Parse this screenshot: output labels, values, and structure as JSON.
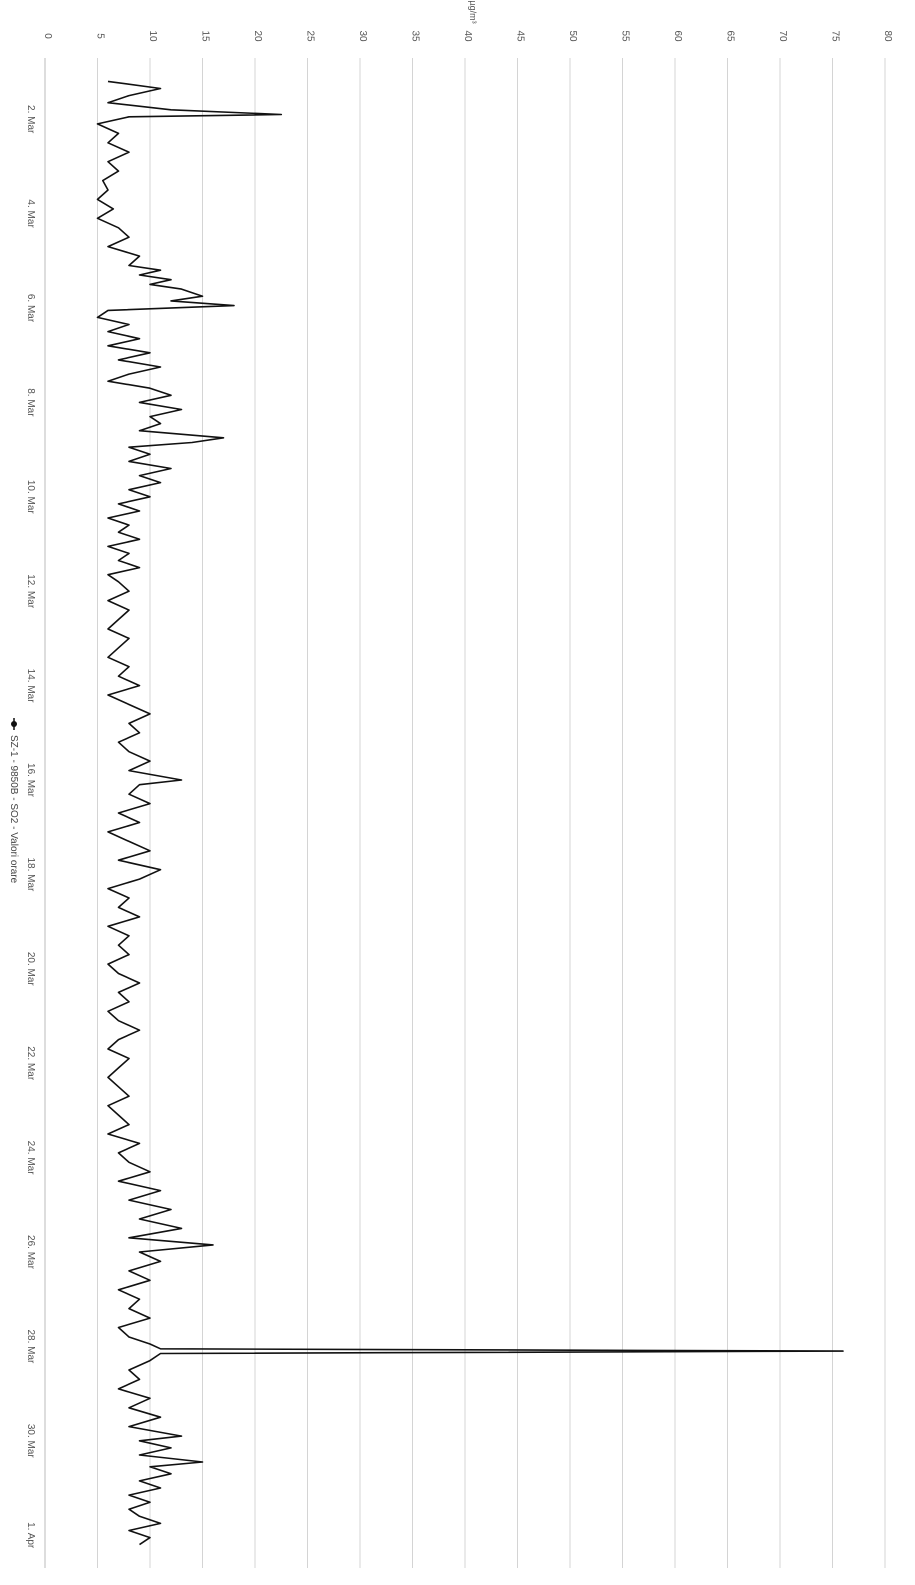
{
  "chart_data": {
    "type": "line",
    "orientation": "rotated-90-clockwise",
    "title": "",
    "ylabel": "µg/m³",
    "xlabel": "",
    "ylim": [
      0,
      80
    ],
    "y_ticks": [
      0,
      5,
      10,
      15,
      20,
      25,
      30,
      35,
      40,
      45,
      50,
      55,
      60,
      65,
      70,
      75,
      80
    ],
    "y_tick_labels": [
      "0",
      "5",
      "10",
      "15",
      "20",
      "25",
      "30",
      "35",
      "40",
      "45",
      "50",
      "55",
      "60",
      "65",
      "70",
      "75",
      "80"
    ],
    "x_tick_labels": [
      "2. Mar",
      "4. Mar",
      "6. Mar",
      "8. Mar",
      "10. Mar",
      "12. Mar",
      "14. Mar",
      "16. Mar",
      "18. Mar",
      "20. Mar",
      "22. Mar",
      "24. Mar",
      "26. Mar",
      "28. Mar",
      "30. Mar",
      "1. Apr"
    ],
    "x_tick_days": [
      2,
      4,
      6,
      8,
      10,
      12,
      14,
      16,
      18,
      20,
      22,
      24,
      26,
      28,
      30,
      32
    ],
    "xlim_days": [
      1,
      32.3
    ],
    "grid": true,
    "legend": "bottom",
    "series": [
      {
        "name": "SZ-1 - 9850B - SO2 - Valori orare",
        "color": "#111111",
        "points": [
          [
            1.2,
            6
          ],
          [
            1.35,
            11
          ],
          [
            1.5,
            8
          ],
          [
            1.65,
            6
          ],
          [
            1.8,
            12
          ],
          [
            1.9,
            22.5
          ],
          [
            1.95,
            8
          ],
          [
            2.1,
            5
          ],
          [
            2.3,
            7
          ],
          [
            2.5,
            6
          ],
          [
            2.7,
            8
          ],
          [
            2.9,
            6
          ],
          [
            3.1,
            7
          ],
          [
            3.3,
            5.5
          ],
          [
            3.5,
            6
          ],
          [
            3.7,
            5
          ],
          [
            3.9,
            6.5
          ],
          [
            4.1,
            5
          ],
          [
            4.3,
            7
          ],
          [
            4.5,
            8
          ],
          [
            4.7,
            6
          ],
          [
            4.9,
            9
          ],
          [
            5.1,
            8
          ],
          [
            5.2,
            11
          ],
          [
            5.3,
            9
          ],
          [
            5.4,
            12
          ],
          [
            5.5,
            10
          ],
          [
            5.6,
            13
          ],
          [
            5.75,
            15
          ],
          [
            5.85,
            12
          ],
          [
            5.95,
            18
          ],
          [
            6.05,
            6
          ],
          [
            6.2,
            5
          ],
          [
            6.35,
            8
          ],
          [
            6.5,
            6
          ],
          [
            6.65,
            9
          ],
          [
            6.8,
            6
          ],
          [
            6.95,
            10
          ],
          [
            7.1,
            7
          ],
          [
            7.25,
            11
          ],
          [
            7.4,
            8
          ],
          [
            7.55,
            6
          ],
          [
            7.7,
            10
          ],
          [
            7.85,
            12
          ],
          [
            8.0,
            9
          ],
          [
            8.15,
            13
          ],
          [
            8.3,
            10
          ],
          [
            8.45,
            11
          ],
          [
            8.6,
            9
          ],
          [
            8.75,
            17
          ],
          [
            8.85,
            14
          ],
          [
            8.95,
            8
          ],
          [
            9.1,
            10
          ],
          [
            9.25,
            8
          ],
          [
            9.4,
            12
          ],
          [
            9.55,
            9
          ],
          [
            9.7,
            11
          ],
          [
            9.85,
            8
          ],
          [
            10.0,
            10
          ],
          [
            10.15,
            7
          ],
          [
            10.3,
            9
          ],
          [
            10.45,
            6
          ],
          [
            10.6,
            8
          ],
          [
            10.75,
            7
          ],
          [
            10.9,
            9
          ],
          [
            11.05,
            6
          ],
          [
            11.2,
            8
          ],
          [
            11.35,
            7
          ],
          [
            11.5,
            9
          ],
          [
            11.65,
            6
          ],
          [
            11.8,
            7
          ],
          [
            12.0,
            8
          ],
          [
            12.2,
            6
          ],
          [
            12.4,
            8
          ],
          [
            12.6,
            7
          ],
          [
            12.8,
            6
          ],
          [
            13.0,
            8
          ],
          [
            13.2,
            7
          ],
          [
            13.4,
            6
          ],
          [
            13.6,
            8
          ],
          [
            13.8,
            7
          ],
          [
            14.0,
            9
          ],
          [
            14.2,
            6
          ],
          [
            14.4,
            8
          ],
          [
            14.6,
            10
          ],
          [
            14.8,
            8
          ],
          [
            15.0,
            9
          ],
          [
            15.2,
            7
          ],
          [
            15.4,
            8
          ],
          [
            15.6,
            10
          ],
          [
            15.8,
            8
          ],
          [
            16.0,
            13
          ],
          [
            16.1,
            9
          ],
          [
            16.3,
            8
          ],
          [
            16.5,
            10
          ],
          [
            16.7,
            7
          ],
          [
            16.9,
            9
          ],
          [
            17.1,
            6
          ],
          [
            17.3,
            8
          ],
          [
            17.5,
            10
          ],
          [
            17.7,
            7
          ],
          [
            17.9,
            11
          ],
          [
            18.1,
            9
          ],
          [
            18.3,
            6
          ],
          [
            18.5,
            8
          ],
          [
            18.7,
            7
          ],
          [
            18.9,
            9
          ],
          [
            19.1,
            6
          ],
          [
            19.3,
            8
          ],
          [
            19.5,
            7
          ],
          [
            19.7,
            8
          ],
          [
            19.9,
            6
          ],
          [
            20.1,
            7
          ],
          [
            20.3,
            9
          ],
          [
            20.5,
            7
          ],
          [
            20.7,
            8
          ],
          [
            20.9,
            6
          ],
          [
            21.1,
            7
          ],
          [
            21.3,
            9
          ],
          [
            21.5,
            7
          ],
          [
            21.7,
            6
          ],
          [
            21.9,
            8
          ],
          [
            22.1,
            7
          ],
          [
            22.3,
            6
          ],
          [
            22.5,
            7
          ],
          [
            22.7,
            8
          ],
          [
            22.9,
            6
          ],
          [
            23.1,
            7
          ],
          [
            23.3,
            8
          ],
          [
            23.5,
            6
          ],
          [
            23.7,
            9
          ],
          [
            23.9,
            7
          ],
          [
            24.1,
            8
          ],
          [
            24.3,
            10
          ],
          [
            24.5,
            7
          ],
          [
            24.7,
            11
          ],
          [
            24.9,
            8
          ],
          [
            25.1,
            12
          ],
          [
            25.3,
            9
          ],
          [
            25.5,
            13
          ],
          [
            25.7,
            8
          ],
          [
            25.85,
            16
          ],
          [
            26.0,
            9
          ],
          [
            26.2,
            11
          ],
          [
            26.4,
            8
          ],
          [
            26.6,
            10
          ],
          [
            26.8,
            7
          ],
          [
            27.0,
            9
          ],
          [
            27.2,
            8
          ],
          [
            27.4,
            10
          ],
          [
            27.6,
            7
          ],
          [
            27.8,
            8
          ],
          [
            27.95,
            10
          ],
          [
            28.05,
            11
          ],
          [
            28.1,
            76
          ],
          [
            28.15,
            11
          ],
          [
            28.3,
            10
          ],
          [
            28.5,
            8
          ],
          [
            28.7,
            9
          ],
          [
            28.9,
            7
          ],
          [
            29.1,
            10
          ],
          [
            29.3,
            8
          ],
          [
            29.5,
            11
          ],
          [
            29.7,
            8
          ],
          [
            29.9,
            13
          ],
          [
            30.0,
            9
          ],
          [
            30.15,
            12
          ],
          [
            30.3,
            9
          ],
          [
            30.45,
            15
          ],
          [
            30.55,
            10
          ],
          [
            30.7,
            12
          ],
          [
            30.85,
            9
          ],
          [
            31.0,
            11
          ],
          [
            31.15,
            8
          ],
          [
            31.3,
            10
          ],
          [
            31.45,
            8
          ],
          [
            31.6,
            9
          ],
          [
            31.75,
            11
          ],
          [
            31.9,
            8
          ],
          [
            32.05,
            10
          ],
          [
            32.2,
            9
          ]
        ]
      }
    ]
  }
}
